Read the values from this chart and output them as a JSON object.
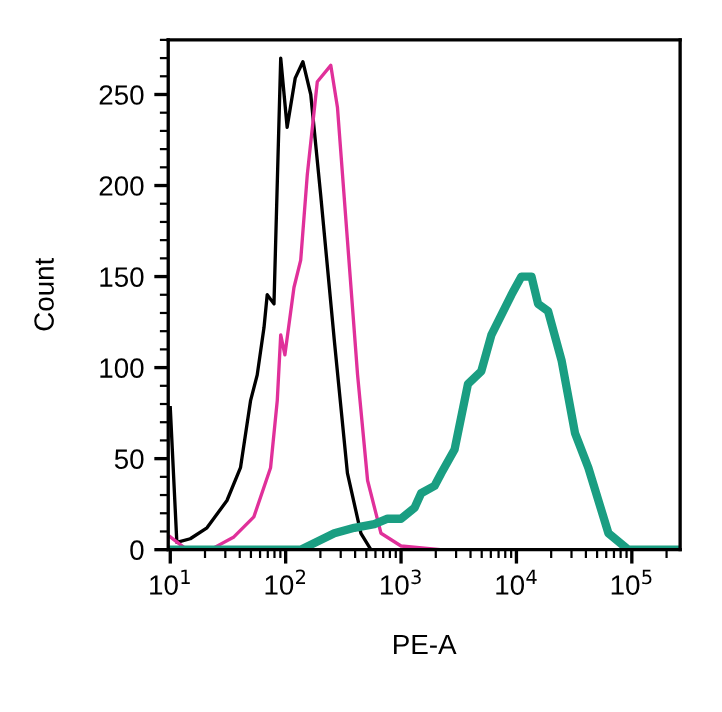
{
  "chart_data": {
    "type": "line",
    "xlabel": "PE-A",
    "ylabel": "Count",
    "log": "x",
    "xlim": [
      9.6,
      262144
    ],
    "xticks": [
      {
        "value": 10,
        "label": "10$^{1}$"
      },
      {
        "value": 100,
        "label": "10$^{2}$"
      },
      {
        "value": 1000,
        "label": "10$^{3}$"
      },
      {
        "value": 10000,
        "label": "10$^{4}$"
      },
      {
        "value": 100000,
        "label": "10$^{5}$"
      }
    ],
    "ylim": [
      0,
      280
    ],
    "yticks": [
      0,
      50,
      100,
      150,
      200,
      250
    ],
    "grid": false,
    "legend": false,
    "marker": "none",
    "line_style": "solid",
    "series": [
      {
        "color": "#000000",
        "x": [
          10,
          11.4,
          14.9,
          20.8,
          31,
          40.6,
          49.7,
          56.7,
          64.9,
          69.2,
          79.2,
          90.6,
          103,
          121,
          141,
          165,
          201,
          264,
          343,
          449,
          548
        ],
        "values": [
          78,
          4,
          6,
          12,
          27,
          45,
          82,
          96,
          122,
          140,
          135,
          270,
          232,
          259,
          268,
          250,
          195,
          115,
          42,
          9,
          0
        ]
      },
      {
        "color": "#e0309a",
        "x": [
          10,
          13.9,
          23.8,
          35.6,
          53,
          74,
          84.6,
          90.6,
          98.5,
          118,
          135,
          154,
          188,
          246,
          281,
          343,
          420,
          513,
          670,
          1000,
          2230
        ],
        "values": [
          7,
          0,
          1,
          7,
          18,
          45,
          82,
          118,
          107,
          144,
          159,
          206,
          257,
          266,
          243,
          170,
          96,
          38,
          9,
          2,
          0
        ]
      },
      {
        "color": "#1a9e82",
        "x": [
          10,
          135,
          264,
          393,
          587,
          764,
          1000,
          1310,
          1493,
          1950,
          2230,
          2910,
          3800,
          4960,
          6070,
          7410,
          9050,
          11050,
          13500,
          15400,
          18800,
          24600,
          32200,
          42000,
          62700,
          93300,
          262144
        ],
        "values": [
          0,
          0,
          9,
          12,
          14,
          17,
          17,
          23,
          31,
          35,
          42,
          55,
          91,
          98,
          118,
          129,
          140,
          150,
          150,
          135,
          131,
          104,
          64,
          45,
          9,
          0,
          0
        ]
      }
    ]
  }
}
